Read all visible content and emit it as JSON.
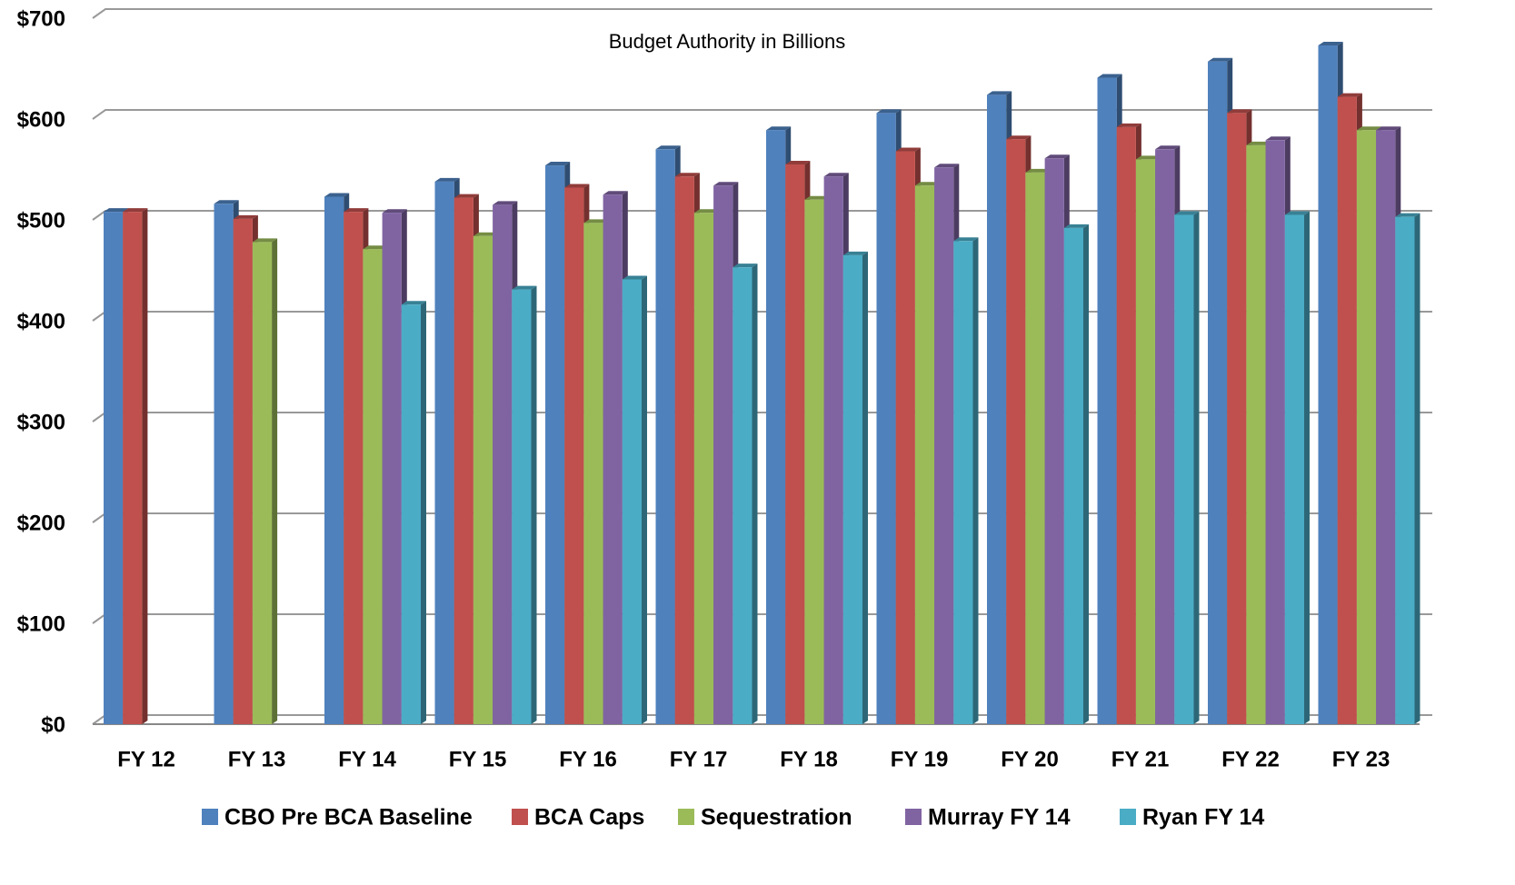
{
  "chart_data": {
    "type": "bar",
    "title": "Budget Authority in Billions",
    "categories": [
      "FY 12",
      "FY 13",
      "FY 14",
      "FY 15",
      "FY 16",
      "FY 17",
      "FY 18",
      "FY 19",
      "FY 20",
      "FY 21",
      "FY 22",
      "FY 23"
    ],
    "series": [
      {
        "name": "CBO Pre BCA Baseline",
        "color": "#4f81bd",
        "values": [
          508,
          516,
          523,
          538,
          554,
          570,
          589,
          606,
          624,
          641,
          657,
          673
        ]
      },
      {
        "name": "BCA Caps",
        "color": "#c0504d",
        "values": [
          508,
          501,
          508,
          522,
          532,
          543,
          555,
          568,
          580,
          592,
          606,
          622
        ]
      },
      {
        "name": "Sequestration",
        "color": "#9bbb59",
        "values": [
          null,
          478,
          471,
          484,
          497,
          507,
          520,
          534,
          547,
          560,
          574,
          589
        ]
      },
      {
        "name": "Murray FY 14",
        "color": "#8064a2",
        "values": [
          null,
          null,
          507,
          515,
          525,
          534,
          543,
          552,
          561,
          570,
          579,
          589
        ]
      },
      {
        "name": "Ryan FY 14",
        "color": "#4bacc6",
        "values": [
          null,
          null,
          416,
          431,
          441,
          453,
          465,
          479,
          492,
          505,
          505,
          503
        ]
      }
    ],
    "ylim": [
      0,
      700
    ],
    "yticks": [
      {
        "value": 0,
        "label": "$0"
      },
      {
        "value": 100,
        "label": "$100"
      },
      {
        "value": 200,
        "label": "$200"
      },
      {
        "value": 300,
        "label": "$300"
      },
      {
        "value": 400,
        "label": "$400"
      },
      {
        "value": 500,
        "label": "$500"
      },
      {
        "value": 600,
        "label": "$600"
      },
      {
        "value": 700,
        "label": "$700"
      }
    ],
    "grid": true,
    "legend": "bottom"
  }
}
